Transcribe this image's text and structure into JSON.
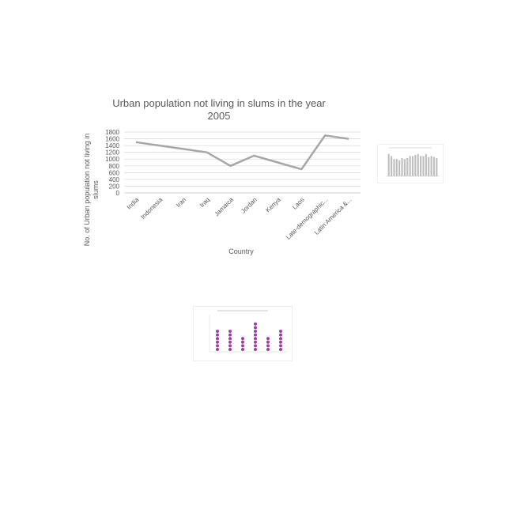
{
  "chart_data": [
    {
      "type": "line",
      "title": "Urban population not living in slums in the year 2005",
      "title_lines": [
        "Urban population not living in slums in the year",
        "2005"
      ],
      "xlabel": "Country",
      "ylabel": "No. of Urban population not living in slums",
      "ylabel_lines": [
        "No. of Urban population not living in",
        "slums"
      ],
      "categories": [
        "India",
        "Indonesia",
        "Iran",
        "Iraq",
        "Jamaica",
        "Jordan",
        "Kenya",
        "Laos",
        "Late-demographic...",
        "Latin America &..."
      ],
      "values": [
        1500,
        1400,
        1300,
        1200,
        800,
        1100,
        900,
        700,
        1700,
        1600
      ],
      "y_ticks": [
        "0",
        "200",
        "400",
        "600",
        "800",
        "1000",
        "1200",
        "1400",
        "1600",
        "1800"
      ],
      "ylim": [
        0,
        1800
      ],
      "grid": true,
      "line_color": "#a6a6a6"
    },
    {
      "type": "bar",
      "title": "",
      "values": [
        22,
        20,
        17,
        17,
        16,
        18,
        17,
        18,
        20,
        20,
        21,
        22,
        20,
        20,
        22,
        19,
        20,
        19,
        18
      ],
      "ylim": [
        0,
        25
      ],
      "bar_color": "#bfbfbf"
    },
    {
      "type": "scatter",
      "title": "",
      "categories": [
        "",
        "",
        "",
        "",
        "",
        ""
      ],
      "values": [
        6,
        6,
        4,
        8,
        4,
        6
      ],
      "dot_color": "#9b3fa3"
    }
  ]
}
